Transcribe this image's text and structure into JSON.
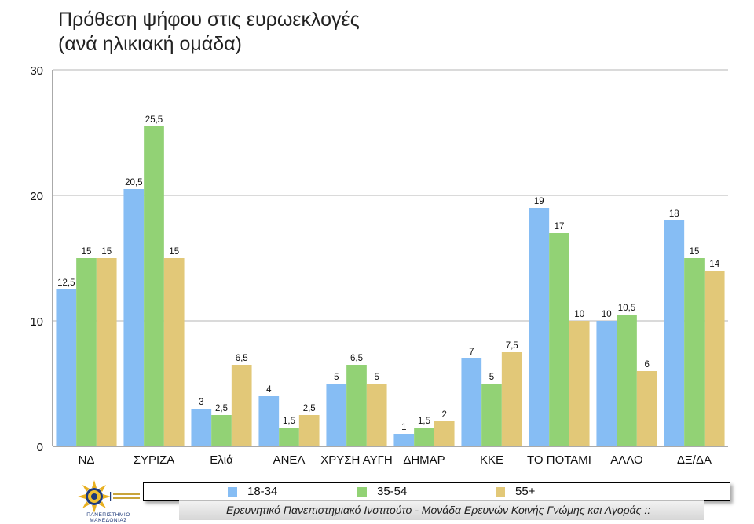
{
  "title": {
    "line1": "Πρόθεση ψήφου στις ευρωεκλογές",
    "line2": "(ανά ηλικιακή ομάδα)"
  },
  "chart_data": {
    "type": "bar",
    "title": "Πρόθεση ψήφου στις ευρωεκλογές (ανά ηλικιακή ομάδα)",
    "categories": [
      "ΝΔ",
      "ΣΥΡΙΖΑ",
      "Ελιά",
      "ΑΝΕΛ",
      "ΧΡΥΣΗ ΑΥΓΗ",
      "ΔΗΜΑΡ",
      "ΚΚΕ",
      "ΤΟ ΠΟΤΑΜΙ",
      "ΑΛΛΟ",
      "ΔΞ/ΔΑ"
    ],
    "series": [
      {
        "name": "18-34",
        "color": "#86bdf4",
        "values": [
          12.5,
          20.5,
          3,
          4,
          5,
          1,
          7,
          19,
          10,
          18
        ],
        "labels": [
          "12,5",
          "20,5",
          "3",
          "4",
          "5",
          "1",
          "7",
          "19",
          "10",
          "18"
        ]
      },
      {
        "name": "35-54",
        "color": "#92d275",
        "values": [
          15,
          25.5,
          2.5,
          1.5,
          6.5,
          1.5,
          5,
          17,
          10.5,
          15
        ],
        "labels": [
          "15",
          "25,5",
          "2,5",
          "1,5",
          "6,5",
          "1,5",
          "5",
          "17",
          "10,5",
          "15"
        ]
      },
      {
        "name": "55+",
        "color": "#e2c878",
        "values": [
          15,
          15,
          6.5,
          2.5,
          5,
          2,
          7.5,
          10,
          6,
          14
        ],
        "labels": [
          "15",
          "15",
          "6,5",
          "2,5",
          "5",
          "2",
          "7,5",
          "10",
          "6",
          "14"
        ]
      }
    ],
    "ylim": [
      0,
      30
    ],
    "yticks": [
      "0",
      "10",
      "20",
      "30"
    ],
    "grid": true,
    "legend_position": "bottom"
  },
  "footer": {
    "text": "Ερευνητικό Πανεπιστημιακό Ινστιτούτο - Μονάδα Ερευνών Κοινής Γνώμης και Αγοράς ::"
  },
  "logo": {
    "line1": "ΠΑΝΕΠΙΣΤΗΜΙΟ",
    "line2": "ΜΑΚΕΔΟΝΙΑΣ"
  }
}
